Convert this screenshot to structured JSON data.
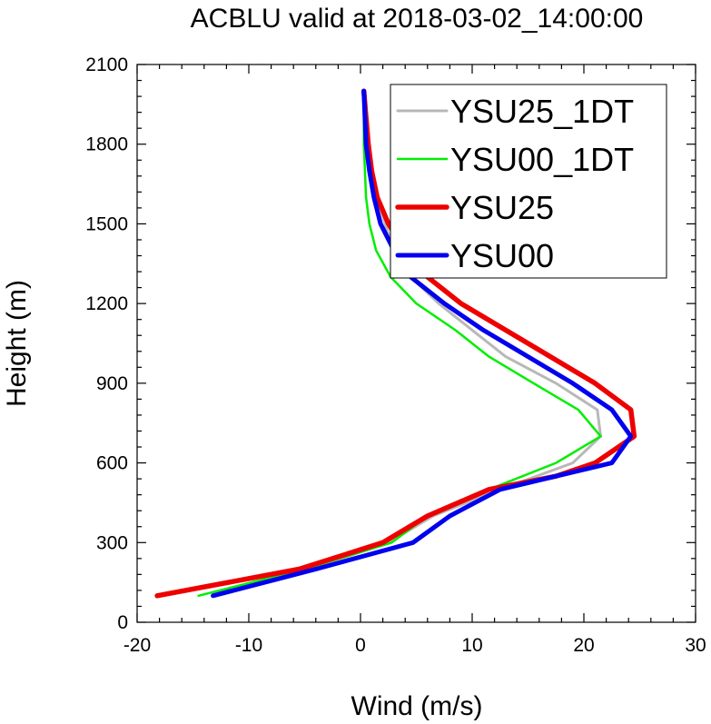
{
  "chart_data": {
    "type": "line",
    "title": "ACBLU valid at 2018-03-02_14:00:00",
    "xlabel": "Wind (m/s)",
    "ylabel": "Height (m)",
    "xlim": [
      -20,
      30
    ],
    "ylim": [
      0,
      2100
    ],
    "x_ticks": [
      "-20",
      "-10",
      "0",
      "10",
      "20",
      "30"
    ],
    "y_ticks": [
      "0",
      "300",
      "600",
      "900",
      "1200",
      "1500",
      "1800",
      "2100"
    ],
    "legend": "top-right",
    "grid": false,
    "series": [
      {
        "name": "YSU25_1DT",
        "color": "#b8b8b8",
        "points": [
          [
            -18.2,
            100
          ],
          [
            -4.5,
            200
          ],
          [
            2.5,
            300
          ],
          [
            6.5,
            400
          ],
          [
            12.5,
            500
          ],
          [
            19,
            600
          ],
          [
            21.5,
            700
          ],
          [
            21.2,
            800
          ],
          [
            17.5,
            900
          ],
          [
            13,
            1000
          ],
          [
            10,
            1100
          ],
          [
            7,
            1200
          ],
          [
            4.5,
            1300
          ],
          [
            3,
            1400
          ],
          [
            2.2,
            1500
          ],
          [
            1.5,
            1600
          ],
          [
            1,
            1700
          ],
          [
            0.6,
            1800
          ],
          [
            0.4,
            1900
          ],
          [
            0.3,
            2000
          ]
        ]
      },
      {
        "name": "YSU00_1DT",
        "color": "#00ee00",
        "points": [
          [
            -14.5,
            100
          ],
          [
            -5,
            200
          ],
          [
            2.8,
            300
          ],
          [
            6,
            400
          ],
          [
            11.5,
            500
          ],
          [
            17.5,
            600
          ],
          [
            21.5,
            700
          ],
          [
            19.5,
            800
          ],
          [
            15.5,
            900
          ],
          [
            11.5,
            1000
          ],
          [
            8.5,
            1100
          ],
          [
            5,
            1200
          ],
          [
            2.7,
            1300
          ],
          [
            1.4,
            1400
          ],
          [
            0.8,
            1500
          ],
          [
            0.5,
            1600
          ],
          [
            0.4,
            1700
          ],
          [
            0.3,
            1800
          ],
          [
            0.3,
            1900
          ],
          [
            0.3,
            2000
          ]
        ]
      },
      {
        "name": "YSU25",
        "color": "#ee0000",
        "points": [
          [
            -18.2,
            100
          ],
          [
            -5.5,
            200
          ],
          [
            2,
            300
          ],
          [
            6,
            400
          ],
          [
            11.5,
            500
          ],
          [
            17.5,
            550
          ],
          [
            21,
            600
          ],
          [
            24.5,
            700
          ],
          [
            24.2,
            800
          ],
          [
            21,
            900
          ],
          [
            17,
            1000
          ],
          [
            13,
            1100
          ],
          [
            9,
            1200
          ],
          [
            6,
            1300
          ],
          [
            4,
            1400
          ],
          [
            2.5,
            1500
          ],
          [
            1.5,
            1600
          ],
          [
            1,
            1700
          ],
          [
            0.7,
            1800
          ],
          [
            0.5,
            1900
          ],
          [
            0.3,
            2000
          ]
        ]
      },
      {
        "name": "YSU00",
        "color": "#0000ee",
        "points": [
          [
            -13.2,
            100
          ],
          [
            -4,
            200
          ],
          [
            4.7,
            300
          ],
          [
            8,
            400
          ],
          [
            12.5,
            500
          ],
          [
            17.5,
            550
          ],
          [
            22.5,
            600
          ],
          [
            24.2,
            700
          ],
          [
            22.5,
            800
          ],
          [
            19,
            900
          ],
          [
            15,
            1000
          ],
          [
            11,
            1100
          ],
          [
            7.5,
            1200
          ],
          [
            4.5,
            1300
          ],
          [
            3,
            1400
          ],
          [
            1.8,
            1500
          ],
          [
            1.2,
            1600
          ],
          [
            0.8,
            1700
          ],
          [
            0.5,
            1800
          ],
          [
            0.4,
            1900
          ],
          [
            0.3,
            2000
          ]
        ]
      }
    ]
  }
}
